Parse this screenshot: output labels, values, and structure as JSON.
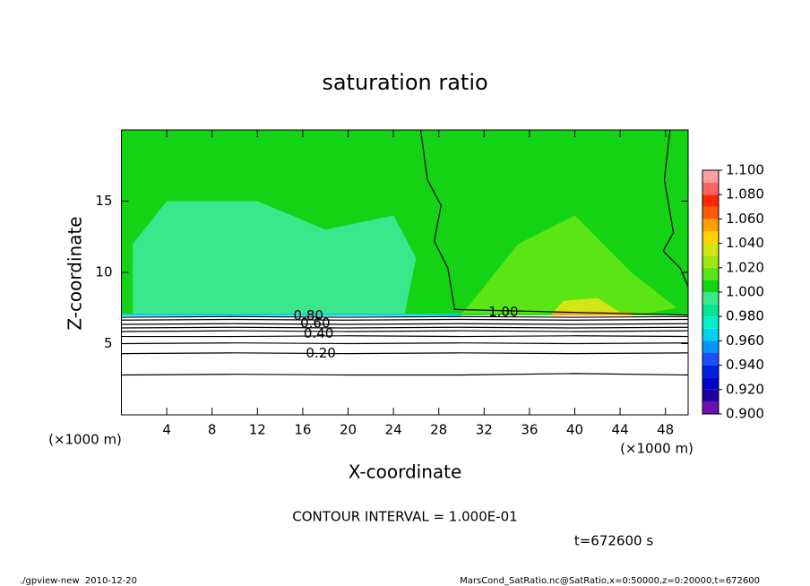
{
  "chart_data": {
    "type": "contour",
    "title": "saturation ratio",
    "x_label": "X-coordinate",
    "y_label": "Z-coordinate",
    "x_unit": "(×1000 m)",
    "y_unit": "(×1000 m)",
    "xlim": [
      0,
      50
    ],
    "xticks": [
      4,
      8,
      12,
      16,
      20,
      24,
      28,
      32,
      36,
      40,
      44,
      48
    ],
    "ylim": [
      0,
      20
    ],
    "yticks": [
      5,
      10,
      15
    ],
    "colorbar": {
      "clim": [
        0.9,
        1.1
      ],
      "colors": [
        "#6a10b0",
        "#1e00a0",
        "#0000c8",
        "#0020e0",
        "#1e50ff",
        "#0096ff",
        "#00d2f0",
        "#00f0c8",
        "#00e696",
        "#3ce68c",
        "#14d214",
        "#5ae614",
        "#a0e614",
        "#d2e614",
        "#ffd200",
        "#ffa000",
        "#ff5a00",
        "#ff2800",
        "#ff6464",
        "#ffa0a0"
      ],
      "ticks": [
        {
          "value": 0.9,
          "label": "0.900"
        },
        {
          "value": 0.92,
          "label": "0.920"
        },
        {
          "value": 0.94,
          "label": "0.940"
        },
        {
          "value": 0.96,
          "label": "0.960"
        },
        {
          "value": 0.98,
          "label": "0.980"
        },
        {
          "value": 1.0,
          "label": "1.000"
        },
        {
          "value": 1.02,
          "label": "1.020"
        },
        {
          "value": 1.04,
          "label": "1.040"
        },
        {
          "value": 1.06,
          "label": "1.060"
        },
        {
          "value": 1.08,
          "label": "1.080"
        },
        {
          "value": 1.1,
          "label": "1.100"
        }
      ]
    },
    "shaded_regions": [
      {
        "level": 1.0,
        "x": [
          0,
          50,
          50,
          0
        ],
        "z": [
          7.0,
          7.0,
          20,
          20
        ]
      },
      {
        "level": 0.99,
        "x": [
          1,
          8,
          14,
          20,
          25,
          26,
          24,
          18,
          12,
          4,
          1
        ],
        "z": [
          7.1,
          7.1,
          7.1,
          7.1,
          7.1,
          11,
          14,
          13,
          15,
          15,
          12
        ]
      },
      {
        "level": 1.01,
        "x": [
          30,
          34,
          38,
          42,
          46,
          49,
          45,
          40,
          35,
          31
        ],
        "z": [
          7.1,
          7.1,
          7.1,
          7.1,
          7.1,
          7.5,
          10,
          14,
          12,
          8
        ]
      },
      {
        "level": 1.03,
        "x": [
          38,
          41,
          44,
          42,
          39
        ],
        "z": [
          7.1,
          7.1,
          7.2,
          8.2,
          8
        ]
      },
      {
        "level": 0.96,
        "x": [
          0,
          30,
          30,
          0
        ],
        "z": [
          6.95,
          6.95,
          7.1,
          7.1
        ]
      },
      {
        "level": 1.05,
        "x": [
          38,
          45,
          45,
          38
        ],
        "z": [
          7.0,
          7.0,
          7.2,
          7.2
        ]
      }
    ],
    "contours": [
      {
        "level": 0.1,
        "x": [
          0,
          10,
          20,
          30,
          40,
          50
        ],
        "z": [
          2.8,
          2.85,
          2.8,
          2.8,
          2.9,
          2.8
        ]
      },
      {
        "level": 0.2,
        "x": [
          0,
          10,
          20,
          30,
          40,
          50
        ],
        "z": [
          4.3,
          4.35,
          4.3,
          4.35,
          4.3,
          4.35
        ]
      },
      {
        "level": 0.3,
        "x": [
          0,
          10,
          20,
          30,
          40,
          50
        ],
        "z": [
          5.0,
          5.05,
          5.0,
          5.05,
          5.0,
          5.05
        ]
      },
      {
        "level": 0.4,
        "x": [
          0,
          10,
          20,
          30,
          40,
          50
        ],
        "z": [
          5.5,
          5.5,
          5.55,
          5.5,
          5.55,
          5.5
        ]
      },
      {
        "level": 0.5,
        "x": [
          0,
          10,
          20,
          30,
          40,
          50
        ],
        "z": [
          5.85,
          5.9,
          5.85,
          5.9,
          5.85,
          5.9
        ]
      },
      {
        "level": 0.6,
        "x": [
          0,
          10,
          20,
          30,
          40,
          50
        ],
        "z": [
          6.1,
          6.15,
          6.1,
          6.15,
          6.1,
          6.15
        ]
      },
      {
        "level": 0.7,
        "x": [
          0,
          10,
          20,
          30,
          40,
          50
        ],
        "z": [
          6.35,
          6.4,
          6.35,
          6.4,
          6.35,
          6.4
        ]
      },
      {
        "level": 0.8,
        "x": [
          0,
          10,
          20,
          30,
          40,
          50
        ],
        "z": [
          6.65,
          6.7,
          6.65,
          6.7,
          6.65,
          6.7
        ]
      },
      {
        "level": 0.9,
        "x": [
          0,
          10,
          20,
          30,
          40,
          50
        ],
        "z": [
          6.85,
          6.9,
          6.85,
          6.9,
          6.85,
          6.9
        ]
      },
      {
        "level": 1.0,
        "x": [
          26.4,
          27.0,
          28.2,
          27.6,
          28.8,
          29.4,
          50
        ],
        "z": [
          20,
          16.5,
          14.7,
          12.2,
          10.3,
          7.4,
          7.0
        ]
      },
      {
        "level": 1.0,
        "x": [
          48.4,
          47.9,
          48.7,
          47.8,
          49.3,
          50
        ],
        "z": [
          20,
          16.5,
          12.8,
          11.5,
          10.3,
          9.0
        ]
      }
    ],
    "contour_labels": [
      {
        "value": 0.2,
        "label": "0.20",
        "x": 17.6,
        "z": 4.3
      },
      {
        "value": 0.4,
        "label": "0.40",
        "x": 17.4,
        "z": 5.7
      },
      {
        "value": 0.6,
        "label": "0.60",
        "x": 17.1,
        "z": 6.4
      },
      {
        "value": 0.8,
        "label": "0.80",
        "x": 16.5,
        "z": 6.95
      },
      {
        "value": 1.0,
        "label": "1.00",
        "x": 33.7,
        "z": 7.2
      }
    ],
    "annotation": "CONTOUR INTERVAL = 1.000E-01",
    "time_label": "t=672600 s",
    "footer_left": "./gpview-new  2010-12-20",
    "footer_right": "MarsCond_SatRatio.nc@SatRatio,x=0:50000,z=0:20000,t=672600"
  }
}
